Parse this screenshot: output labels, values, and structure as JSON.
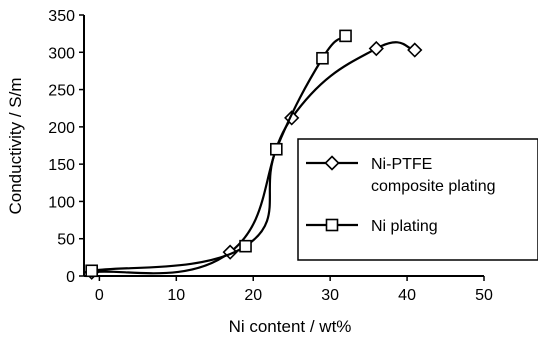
{
  "chart_data": {
    "type": "line",
    "xlabel": "Ni content / wt%",
    "ylabel": "Conductivity / S/m",
    "xlim": [
      -2,
      50
    ],
    "ylim": [
      0,
      350
    ],
    "x_ticks": [
      "0",
      "10",
      "20",
      "30",
      "40",
      "50"
    ],
    "y_ticks": [
      "0",
      "50",
      "100",
      "150",
      "200",
      "250",
      "300",
      "350"
    ],
    "x_tick_values": [
      0,
      10,
      20,
      30,
      40,
      50
    ],
    "y_tick_values": [
      0,
      50,
      100,
      150,
      200,
      250,
      300,
      350
    ],
    "grid": false,
    "legend_position": "right-middle",
    "series": [
      {
        "name": "Ni-PTFE\ncomposite plating",
        "marker": "diamond",
        "x": [
          -1,
          17,
          25,
          36,
          41
        ],
        "y": [
          5,
          32,
          212,
          305,
          303
        ]
      },
      {
        "name": "Ni plating",
        "marker": "square",
        "x": [
          -1,
          19,
          23,
          29,
          32
        ],
        "y": [
          7,
          40,
          170,
          292,
          322
        ]
      }
    ]
  }
}
